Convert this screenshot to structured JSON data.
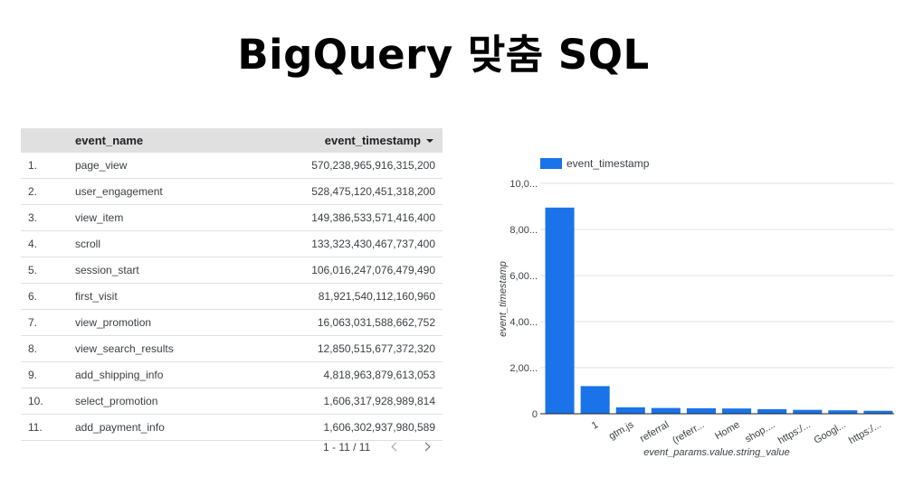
{
  "title": "BigQuery 맞춤 SQL",
  "table": {
    "columns": [
      "event_name",
      "event_timestamp"
    ],
    "rows": [
      {
        "idx": "1.",
        "name": "page_view",
        "value": "570,238,965,916,315,200"
      },
      {
        "idx": "2.",
        "name": "user_engagement",
        "value": "528,475,120,451,318,200"
      },
      {
        "idx": "3.",
        "name": "view_item",
        "value": "149,386,533,571,416,400"
      },
      {
        "idx": "4.",
        "name": "scroll",
        "value": "133,323,430,467,737,400"
      },
      {
        "idx": "5.",
        "name": "session_start",
        "value": "106,016,247,076,479,490"
      },
      {
        "idx": "6.",
        "name": "first_visit",
        "value": "81,921,540,112,160,960"
      },
      {
        "idx": "7.",
        "name": "view_promotion",
        "value": "16,063,031,588,662,752"
      },
      {
        "idx": "8.",
        "name": "view_search_results",
        "value": "12,850,515,677,372,320"
      },
      {
        "idx": "9.",
        "name": "add_shipping_info",
        "value": "4,818,963,879,613,053"
      },
      {
        "idx": "10.",
        "name": "select_promotion",
        "value": "1,606,317,928,989,814"
      },
      {
        "idx": "11.",
        "name": "add_payment_info",
        "value": "1,606,302,937,980,589"
      }
    ],
    "pagination": "1 - 11 / 11"
  },
  "colors": {
    "bar": "#1a73e8",
    "grid": "#e0e0e0",
    "header_bg": "#e0e0e0"
  },
  "icons": {
    "sort": "caret-down-icon",
    "prev": "chevron-left-icon",
    "next": "chevron-right-icon"
  },
  "chart_data": {
    "type": "bar",
    "legend": "event_timestamp",
    "legend_position": "top-left",
    "xlabel": "event_params.value.string_value",
    "ylabel": "event_timestamp",
    "categories": [
      "",
      "1",
      "gtm.js",
      "referral",
      "(referr...",
      "Home",
      "shop....",
      "https:/...",
      "Googl...",
      "https:/..."
    ],
    "values": [
      8.95,
      1.2,
      0.28,
      0.25,
      0.24,
      0.23,
      0.2,
      0.17,
      0.15,
      0.13
    ],
    "yticks": [
      "0",
      "2,00...",
      "4,00...",
      "6,00...",
      "8,00...",
      "10,0..."
    ],
    "ylim": [
      0,
      10
    ],
    "grid": true
  }
}
